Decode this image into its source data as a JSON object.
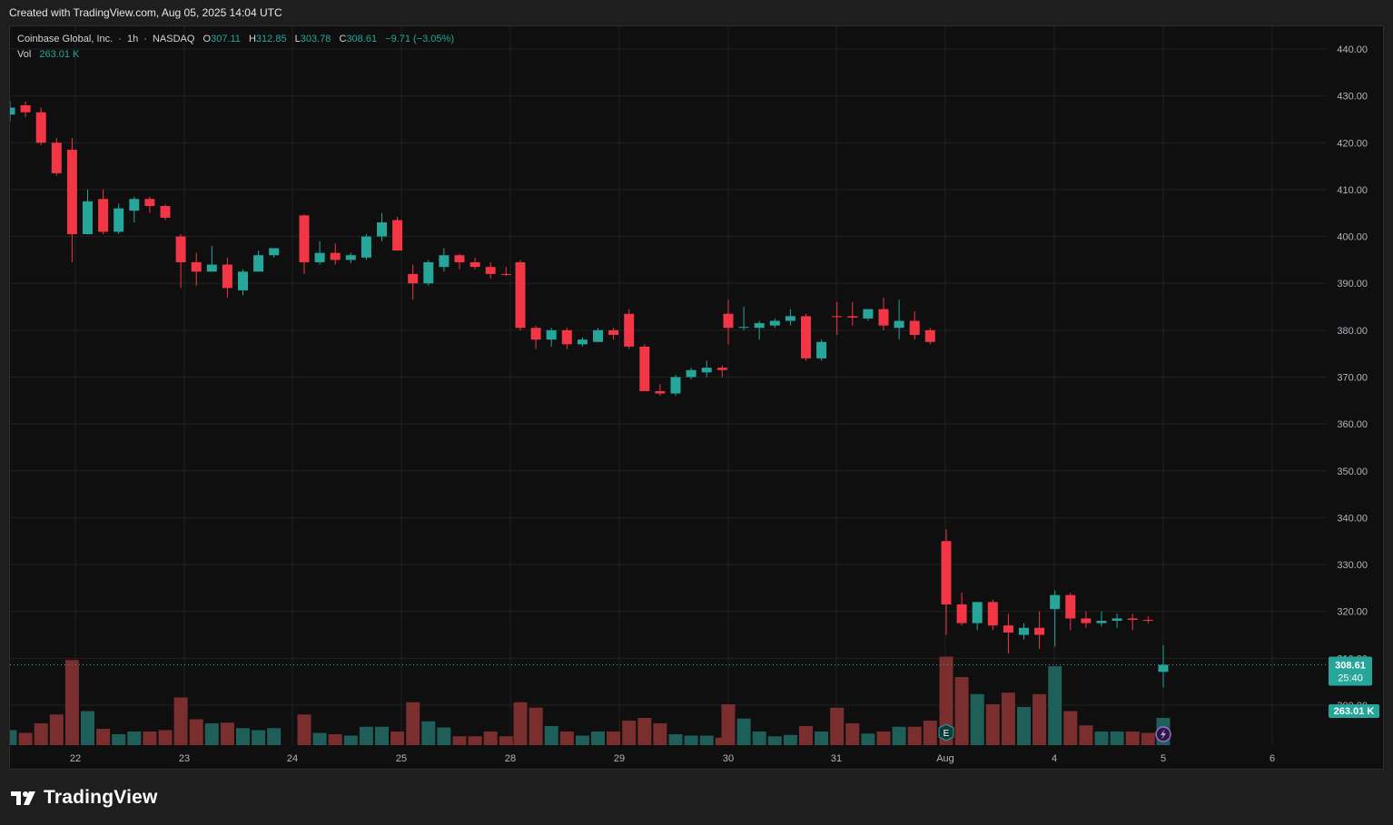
{
  "header": {
    "created_with": "Created with TradingView.com, Aug 05, 2025 14:04 UTC"
  },
  "legend": {
    "symbol": "Coinbase Global, Inc.",
    "interval": "1h",
    "exchange": "NASDAQ",
    "open_label": "O",
    "open": "307.11",
    "high_label": "H",
    "high": "312.85",
    "low_label": "L",
    "low": "303.78",
    "close_label": "C",
    "close": "308.61",
    "change": "−9.71 (−3.05%)",
    "vol_label": "Vol",
    "vol_value": "263.01 K"
  },
  "price_badge": {
    "price": "308.61",
    "countdown": "25:40"
  },
  "volume_badge": "263.01 K",
  "footer": {
    "brand": "TradingView"
  },
  "colors": {
    "up": "#26a69a",
    "down": "#f23645",
    "vol_up": "#1f5f5a",
    "vol_down": "#7a2e2e",
    "grid": "#222222",
    "text": "#b2b5be"
  },
  "chart_data": {
    "type": "candlestick",
    "symbol": "Coinbase Global, Inc.",
    "interval": "1h",
    "y_range": [
      295,
      444
    ],
    "y_ticks": [
      "440.00",
      "430.00",
      "420.00",
      "410.00",
      "400.00",
      "390.00",
      "380.00",
      "370.00",
      "360.00",
      "350.00",
      "340.00",
      "330.00",
      "320.00",
      "310.00",
      "300.00"
    ],
    "x_labels": [
      "22",
      "23",
      "24",
      "25",
      "28",
      "29",
      "30",
      "31",
      "Aug",
      "4",
      "5",
      "6"
    ],
    "last_price": 308.61,
    "grid": true,
    "candles": [
      {
        "o": 426.0,
        "h": 429.0,
        "l": 424.5,
        "c": 427.5
      },
      {
        "o": 428.0,
        "h": 428.8,
        "l": 425.5,
        "c": 426.5
      },
      {
        "o": 426.5,
        "h": 427.5,
        "l": 419.5,
        "c": 420.0
      },
      {
        "o": 420.0,
        "h": 421.0,
        "l": 413.0,
        "c": 413.5
      },
      {
        "o": 418.5,
        "h": 421.0,
        "l": 394.5,
        "c": 400.5
      },
      {
        "o": 400.5,
        "h": 410.0,
        "l": 400.5,
        "c": 407.5
      },
      {
        "o": 408.0,
        "h": 410.0,
        "l": 400.5,
        "c": 401.0
      },
      {
        "o": 401.0,
        "h": 407.0,
        "l": 400.5,
        "c": 406.0
      },
      {
        "o": 405.5,
        "h": 408.5,
        "l": 403.0,
        "c": 408.0
      },
      {
        "o": 408.0,
        "h": 408.5,
        "l": 405.0,
        "c": 406.5
      },
      {
        "o": 406.5,
        "h": 406.8,
        "l": 403.5,
        "c": 404.0
      },
      {
        "o": 400.0,
        "h": 400.5,
        "l": 389.0,
        "c": 394.5
      },
      {
        "o": 394.5,
        "h": 396.5,
        "l": 389.5,
        "c": 392.5
      },
      {
        "o": 392.5,
        "h": 398.0,
        "l": 392.5,
        "c": 394.0
      },
      {
        "o": 394.0,
        "h": 395.5,
        "l": 387.0,
        "c": 389.0
      },
      {
        "o": 388.5,
        "h": 393.0,
        "l": 387.5,
        "c": 392.5
      },
      {
        "o": 392.5,
        "h": 397.0,
        "l": 392.5,
        "c": 396.0
      },
      {
        "o": 396.0,
        "h": 397.5,
        "l": 395.5,
        "c": 397.5
      },
      {
        "o": 404.5,
        "h": 404.7,
        "l": 392.0,
        "c": 394.5
      },
      {
        "o": 394.5,
        "h": 399.0,
        "l": 394.0,
        "c": 396.5
      },
      {
        "o": 396.5,
        "h": 398.5,
        "l": 394.0,
        "c": 395.0
      },
      {
        "o": 395.0,
        "h": 396.5,
        "l": 394.3,
        "c": 396.0
      },
      {
        "o": 395.5,
        "h": 400.5,
        "l": 395.0,
        "c": 400.0
      },
      {
        "o": 400.0,
        "h": 405.0,
        "l": 399.0,
        "c": 403.0
      },
      {
        "o": 403.5,
        "h": 404.2,
        "l": 397.0,
        "c": 397.0
      },
      {
        "o": 392.0,
        "h": 394.0,
        "l": 386.5,
        "c": 390.0
      },
      {
        "o": 390.0,
        "h": 395.0,
        "l": 389.5,
        "c": 394.5
      },
      {
        "o": 393.5,
        "h": 397.5,
        "l": 392.5,
        "c": 396.0
      },
      {
        "o": 396.0,
        "h": 396.3,
        "l": 393.0,
        "c": 394.5
      },
      {
        "o": 394.5,
        "h": 395.5,
        "l": 393.0,
        "c": 393.5
      },
      {
        "o": 393.5,
        "h": 394.5,
        "l": 391.0,
        "c": 392.0
      },
      {
        "o": 392.0,
        "h": 393.5,
        "l": 391.5,
        "c": 391.8
      },
      {
        "o": 394.5,
        "h": 395.0,
        "l": 380.0,
        "c": 380.5
      },
      {
        "o": 380.5,
        "h": 381.0,
        "l": 376.0,
        "c": 378.0
      },
      {
        "o": 378.0,
        "h": 380.5,
        "l": 376.5,
        "c": 380.0
      },
      {
        "o": 380.0,
        "h": 380.5,
        "l": 376.0,
        "c": 377.0
      },
      {
        "o": 377.0,
        "h": 378.5,
        "l": 376.5,
        "c": 378.0
      },
      {
        "o": 377.5,
        "h": 380.5,
        "l": 377.5,
        "c": 380.0
      },
      {
        "o": 380.0,
        "h": 380.5,
        "l": 378.0,
        "c": 379.0
      },
      {
        "o": 383.5,
        "h": 384.5,
        "l": 376.0,
        "c": 376.5
      },
      {
        "o": 376.5,
        "h": 377.0,
        "l": 367.0,
        "c": 367.0
      },
      {
        "o": 367.0,
        "h": 368.5,
        "l": 366.0,
        "c": 366.5
      },
      {
        "o": 366.5,
        "h": 370.5,
        "l": 366.0,
        "c": 370.0
      },
      {
        "o": 370.0,
        "h": 372.0,
        "l": 369.5,
        "c": 371.5
      },
      {
        "o": 371.0,
        "h": 373.5,
        "l": 370.0,
        "c": 372.0
      },
      {
        "o": 372.0,
        "h": 372.5,
        "l": 370.0,
        "c": 371.5
      },
      {
        "o": 383.5,
        "h": 386.5,
        "l": 377.0,
        "c": 380.5
      },
      {
        "o": 380.5,
        "h": 385.0,
        "l": 380.0,
        "c": 380.7
      },
      {
        "o": 380.5,
        "h": 382.0,
        "l": 378.0,
        "c": 381.5
      },
      {
        "o": 381.0,
        "h": 382.5,
        "l": 380.5,
        "c": 382.0
      },
      {
        "o": 382.0,
        "h": 384.5,
        "l": 381.0,
        "c": 383.0
      },
      {
        "o": 383.0,
        "h": 383.5,
        "l": 373.5,
        "c": 374.0
      },
      {
        "o": 374.0,
        "h": 378.0,
        "l": 373.5,
        "c": 377.5
      },
      {
        "o": 383.0,
        "h": 386.0,
        "l": 379.0,
        "c": 382.8
      },
      {
        "o": 383.0,
        "h": 386.0,
        "l": 381.0,
        "c": 382.7
      },
      {
        "o": 382.5,
        "h": 384.5,
        "l": 382.0,
        "c": 384.5
      },
      {
        "o": 384.5,
        "h": 387.0,
        "l": 380.0,
        "c": 381.0
      },
      {
        "o": 380.5,
        "h": 386.5,
        "l": 378.0,
        "c": 382.0
      },
      {
        "o": 382.0,
        "h": 384.0,
        "l": 378.0,
        "c": 379.0
      },
      {
        "o": 380.0,
        "h": 380.5,
        "l": 377.0,
        "c": 377.5
      },
      {
        "o": 335.0,
        "h": 337.5,
        "l": 315.0,
        "c": 321.5
      },
      {
        "o": 321.5,
        "h": 324.0,
        "l": 317.0,
        "c": 317.5
      },
      {
        "o": 317.5,
        "h": 322.0,
        "l": 316.0,
        "c": 322.0
      },
      {
        "o": 322.0,
        "h": 322.5,
        "l": 316.0,
        "c": 317.0
      },
      {
        "o": 317.0,
        "h": 319.5,
        "l": 311.0,
        "c": 315.5
      },
      {
        "o": 315.0,
        "h": 317.5,
        "l": 314.0,
        "c": 316.5
      },
      {
        "o": 316.5,
        "h": 320.0,
        "l": 312.0,
        "c": 315.0
      },
      {
        "o": 320.5,
        "h": 324.5,
        "l": 312.5,
        "c": 323.5
      },
      {
        "o": 323.5,
        "h": 324.0,
        "l": 316.0,
        "c": 318.5
      },
      {
        "o": 318.5,
        "h": 320.0,
        "l": 316.5,
        "c": 317.5
      },
      {
        "o": 317.5,
        "h": 320.0,
        "l": 316.8,
        "c": 318.0
      },
      {
        "o": 318.0,
        "h": 319.5,
        "l": 316.5,
        "c": 318.5
      },
      {
        "o": 318.5,
        "h": 319.5,
        "l": 316.0,
        "c": 318.2
      },
      {
        "o": 318.2,
        "h": 319.0,
        "l": 317.5,
        "c": 318.0
      },
      {
        "o": 307.11,
        "h": 312.85,
        "l": 303.78,
        "c": 308.61
      }
    ],
    "volume_units": "relative",
    "volumes": [
      0.22,
      0.18,
      0.32,
      0.45,
      1.25,
      0.5,
      0.24,
      0.16,
      0.2,
      0.2,
      0.22,
      0.7,
      0.38,
      0.32,
      0.33,
      0.25,
      0.22,
      0.25,
      0.45,
      0.18,
      0.16,
      0.14,
      0.27,
      0.27,
      0.2,
      0.63,
      0.35,
      0.26,
      0.13,
      0.13,
      0.2,
      0.13,
      0.63,
      0.55,
      0.28,
      0.2,
      0.14,
      0.2,
      0.2,
      0.36,
      0.4,
      0.32,
      0.16,
      0.14,
      0.14,
      0.11,
      0.6,
      0.39,
      0.2,
      0.13,
      0.15,
      0.28,
      0.2,
      0.55,
      0.32,
      0.17,
      0.2,
      0.27,
      0.27,
      0.36,
      1.3,
      1.0,
      0.75,
      0.6,
      0.77,
      0.56,
      0.75,
      1.16,
      0.5,
      0.29,
      0.2,
      0.2,
      0.2,
      0.18,
      0.4
    ],
    "volume_dir": [
      "up",
      "down",
      "down",
      "down",
      "down",
      "up",
      "down",
      "up",
      "up",
      "down",
      "down",
      "down",
      "down",
      "up",
      "down",
      "up",
      "up",
      "up",
      "down",
      "up",
      "down",
      "up",
      "up",
      "up",
      "down",
      "down",
      "up",
      "up",
      "down",
      "down",
      "down",
      "down",
      "down",
      "down",
      "up",
      "down",
      "up",
      "up",
      "down",
      "down",
      "down",
      "down",
      "up",
      "up",
      "up",
      "down",
      "down",
      "up",
      "up",
      "up",
      "up",
      "down",
      "up",
      "down",
      "down",
      "up",
      "down",
      "up",
      "down",
      "down",
      "down",
      "down",
      "up",
      "down",
      "down",
      "up",
      "down",
      "up",
      "down",
      "down",
      "up",
      "up",
      "down",
      "down",
      "up"
    ]
  }
}
